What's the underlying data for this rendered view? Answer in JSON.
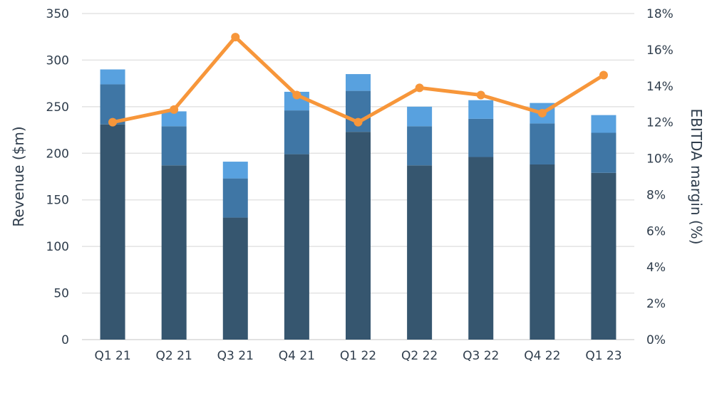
{
  "chart_data": {
    "type": "bar+line",
    "title": "",
    "categories": [
      "Q1 21",
      "Q2 21",
      "Q3 21",
      "Q4 21",
      "Q1 22",
      "Q2 22",
      "Q3 22",
      "Q4 22",
      "Q1 23"
    ],
    "stacked_series": [
      {
        "values": [
          231,
          187,
          131,
          199,
          223,
          187,
          196,
          188,
          179
        ],
        "color": "#36566f"
      },
      {
        "values": [
          43,
          42,
          42,
          47,
          44,
          42,
          41,
          44,
          43
        ],
        "color": "#3f76a5"
      },
      {
        "values": [
          16,
          16,
          18,
          20,
          18,
          21,
          20,
          22,
          19
        ],
        "color": "#58a1df"
      }
    ],
    "line_series": {
      "values": [
        12.0,
        12.7,
        16.7,
        13.5,
        12.0,
        13.9,
        13.5,
        12.5,
        14.6
      ],
      "color": "#f7963a",
      "axis": "right"
    },
    "ylabel": "Revenue ($m)",
    "y2label": "EBITDA margin (%)",
    "ylim": [
      0,
      350
    ],
    "y2lim": [
      0,
      18
    ],
    "yticks": [
      "0",
      "50",
      "100",
      "150",
      "200",
      "250",
      "300",
      "350"
    ],
    "y2ticks": [
      "0%",
      "2%",
      "4%",
      "6%",
      "8%",
      "10%",
      "12%",
      "14%",
      "16%",
      "18%"
    ],
    "grid": true,
    "legend": "none"
  }
}
